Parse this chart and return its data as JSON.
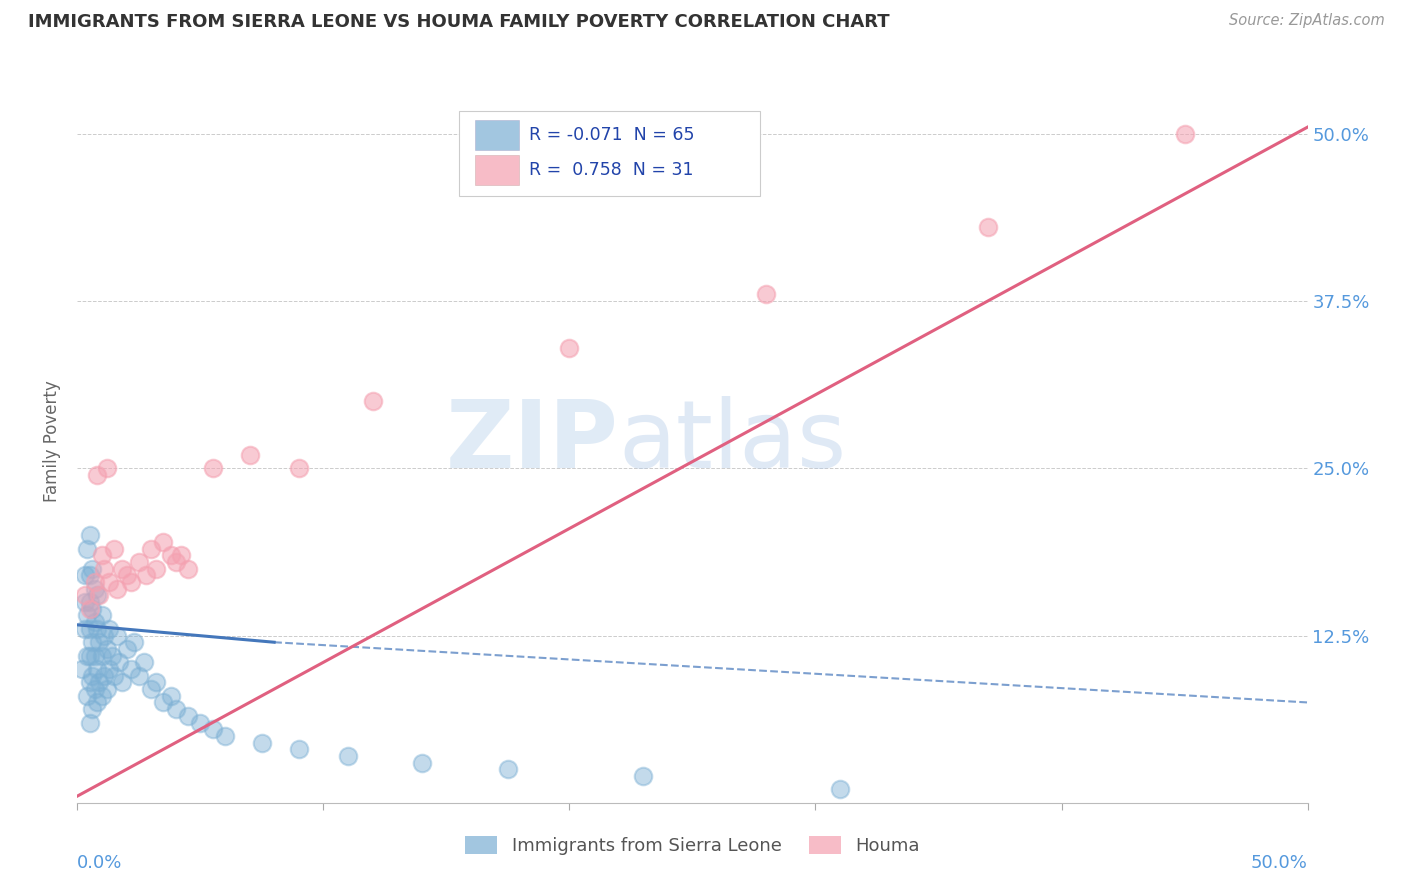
{
  "title": "IMMIGRANTS FROM SIERRA LEONE VS HOUMA FAMILY POVERTY CORRELATION CHART",
  "source": "Source: ZipAtlas.com",
  "ylabel": "Family Poverty",
  "xmin": 0.0,
  "xmax": 0.5,
  "ymin": 0.0,
  "ymax": 0.54,
  "yticks": [
    0.0,
    0.125,
    0.25,
    0.375,
    0.5
  ],
  "ytick_labels": [
    "",
    "12.5%",
    "25.0%",
    "37.5%",
    "50.0%"
  ],
  "legend_line1": "R = -0.071  N = 65",
  "legend_line2": "R =  0.758  N = 31",
  "blue_color": "#7BAFD4",
  "pink_color": "#F4A0B0",
  "blue_line_color": "#4477BB",
  "pink_line_color": "#E06080",
  "watermark_zip": "ZIP",
  "watermark_atlas": "atlas",
  "background_color": "#FFFFFF",
  "grid_color": "#CCCCCC",
  "blue_scatter_x": [
    0.002,
    0.003,
    0.003,
    0.003,
    0.004,
    0.004,
    0.004,
    0.004,
    0.005,
    0.005,
    0.005,
    0.005,
    0.005,
    0.005,
    0.005,
    0.006,
    0.006,
    0.006,
    0.006,
    0.006,
    0.007,
    0.007,
    0.007,
    0.007,
    0.008,
    0.008,
    0.008,
    0.008,
    0.009,
    0.009,
    0.01,
    0.01,
    0.01,
    0.011,
    0.011,
    0.012,
    0.012,
    0.013,
    0.013,
    0.014,
    0.015,
    0.016,
    0.017,
    0.018,
    0.02,
    0.022,
    0.023,
    0.025,
    0.027,
    0.03,
    0.032,
    0.035,
    0.038,
    0.04,
    0.045,
    0.05,
    0.055,
    0.06,
    0.075,
    0.09,
    0.11,
    0.14,
    0.175,
    0.23,
    0.31
  ],
  "blue_scatter_y": [
    0.1,
    0.13,
    0.15,
    0.17,
    0.08,
    0.11,
    0.14,
    0.19,
    0.06,
    0.09,
    0.11,
    0.13,
    0.15,
    0.17,
    0.2,
    0.07,
    0.095,
    0.12,
    0.145,
    0.175,
    0.085,
    0.11,
    0.135,
    0.16,
    0.075,
    0.1,
    0.13,
    0.155,
    0.09,
    0.12,
    0.08,
    0.11,
    0.14,
    0.095,
    0.125,
    0.085,
    0.115,
    0.1,
    0.13,
    0.11,
    0.095,
    0.125,
    0.105,
    0.09,
    0.115,
    0.1,
    0.12,
    0.095,
    0.105,
    0.085,
    0.09,
    0.075,
    0.08,
    0.07,
    0.065,
    0.06,
    0.055,
    0.05,
    0.045,
    0.04,
    0.035,
    0.03,
    0.025,
    0.02,
    0.01
  ],
  "pink_scatter_x": [
    0.003,
    0.005,
    0.007,
    0.009,
    0.011,
    0.013,
    0.016,
    0.018,
    0.02,
    0.022,
    0.025,
    0.028,
    0.032,
    0.038,
    0.015,
    0.01,
    0.03,
    0.035,
    0.04,
    0.045,
    0.012,
    0.008,
    0.042,
    0.055,
    0.07,
    0.09,
    0.12,
    0.2,
    0.28,
    0.37,
    0.45
  ],
  "pink_scatter_y": [
    0.155,
    0.145,
    0.165,
    0.155,
    0.175,
    0.165,
    0.16,
    0.175,
    0.17,
    0.165,
    0.18,
    0.17,
    0.175,
    0.185,
    0.19,
    0.185,
    0.19,
    0.195,
    0.18,
    0.175,
    0.25,
    0.245,
    0.185,
    0.25,
    0.26,
    0.25,
    0.3,
    0.34,
    0.38,
    0.43,
    0.5
  ],
  "blue_trend_x": [
    0.0,
    0.08,
    0.5
  ],
  "blue_trend_y": [
    0.133,
    0.12,
    0.075
  ],
  "pink_trend_x": [
    0.0,
    0.5
  ],
  "pink_trend_y": [
    0.005,
    0.505
  ]
}
